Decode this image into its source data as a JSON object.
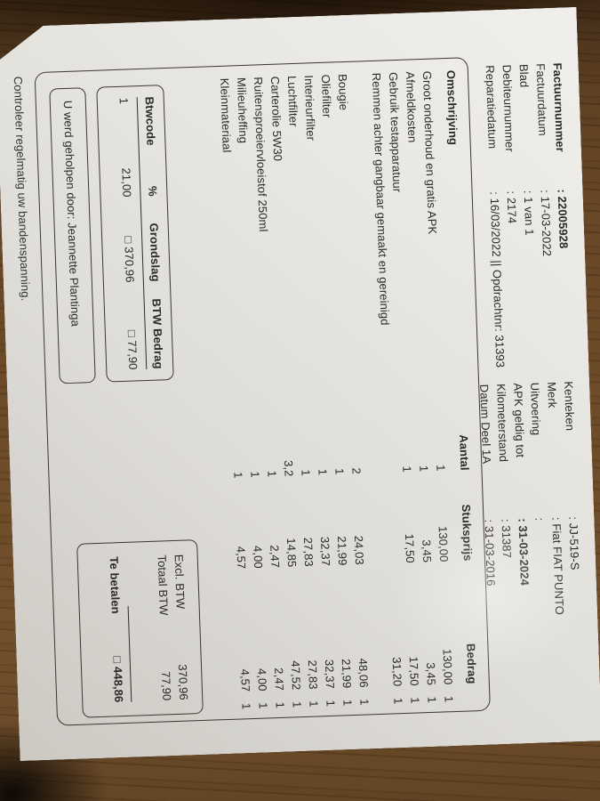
{
  "header_left": {
    "rows": [
      {
        "label": "Factuurnummer",
        "value": ": 22005928",
        "label_bold": true,
        "value_bold": true
      },
      {
        "label": "Factuurdatum",
        "value": ": 17-03-2022"
      },
      {
        "label": "Blad",
        "value": ": 1 van 1"
      },
      {
        "label": "Debiteurnummer",
        "value": ": 2174"
      },
      {
        "label": "Reparatiedatum",
        "value": ": 16/03/2022 || Opdrachtnr: 31393"
      }
    ]
  },
  "header_right": {
    "rows": [
      {
        "label": "Kenteken",
        "value": ": JJ-519-S"
      },
      {
        "label": "Merk",
        "value": ": Fiat FIAT PUNTO"
      },
      {
        "label": "Uitvoering",
        "value": ":"
      },
      {
        "label": "APK geldig tot",
        "value": ": 31-03-2024",
        "value_bold": true
      },
      {
        "label": "Kilometerstand",
        "value": ": 31387"
      },
      {
        "label": "Datum Deel 1A",
        "value": ": 31-03-2016"
      }
    ]
  },
  "items_table": {
    "headers": {
      "desc": "Omschrijving",
      "qty": "Aantal",
      "unit": "Stuksprijs",
      "amount": "Bedrag"
    },
    "rows": [
      {
        "desc": "Groot onderhoud en gratis APK",
        "qty": "1",
        "unit": "130,00",
        "amount": "130,00",
        "code": "1"
      },
      {
        "desc": "Afmeldkosten",
        "qty": "1",
        "unit": "3,45",
        "amount": "3,45",
        "code": "1"
      },
      {
        "desc": "Gebruik testapparatuur",
        "qty": "1",
        "unit": "17,50",
        "amount": "17,50",
        "code": "1"
      },
      {
        "desc": "Remmen achter gangbaar gemaakt en gereinigd",
        "qty": "",
        "unit": "",
        "amount": "31,20",
        "code": "1"
      },
      {
        "desc": "",
        "qty": "",
        "unit": "",
        "amount": "",
        "code": ""
      },
      {
        "desc": "Bougie",
        "qty": "2",
        "unit": "24,03",
        "amount": "48,06",
        "code": "1"
      },
      {
        "desc": "Oliefilter",
        "qty": "1",
        "unit": "21,99",
        "amount": "21,99",
        "code": "1"
      },
      {
        "desc": "Interieurfilter",
        "qty": "1",
        "unit": "32,37",
        "amount": "32,37",
        "code": "1"
      },
      {
        "desc": "Luchtfilter",
        "qty": "1",
        "unit": "27,83",
        "amount": "27,83",
        "code": "1"
      },
      {
        "desc": "Carterolie 5W30",
        "qty": "3,2",
        "unit": "14,85",
        "amount": "47,52",
        "code": "1"
      },
      {
        "desc": "Ruitensproeiervloeistof 250ml",
        "qty": "1",
        "unit": "2,47",
        "amount": "2,47",
        "code": "1"
      },
      {
        "desc": "Milieuheffing",
        "qty": "1",
        "unit": "4,00",
        "amount": "4,00",
        "code": "1"
      },
      {
        "desc": "Kleinmateriaal",
        "qty": "1",
        "unit": "4,57",
        "amount": "4,57",
        "code": "1"
      }
    ]
  },
  "btw_table": {
    "headers": [
      "Btwcode",
      "%",
      "Grondslag",
      "BTW Bedrag"
    ],
    "row": [
      "1",
      "21,00",
      "□ 370,96",
      "□ 77,90"
    ]
  },
  "totals": {
    "rows": [
      {
        "label": "Excl. BTW",
        "value": "370,96"
      },
      {
        "label": "Totaal BTW",
        "value": "77,90"
      }
    ],
    "due_label": "Te betalen",
    "due_value": "□ 448,86"
  },
  "note": {
    "text": "U werd geholpen door: Jeannette Plantinga"
  },
  "footer": {
    "text": "Controleer regelmatig uw bandenspanning."
  },
  "colors": {
    "paper": "#e7e5e0",
    "wood": "#6b4a28",
    "wood_dark": "#2a1b0c",
    "ink": "#2b2a28",
    "line": "#3a3733"
  }
}
